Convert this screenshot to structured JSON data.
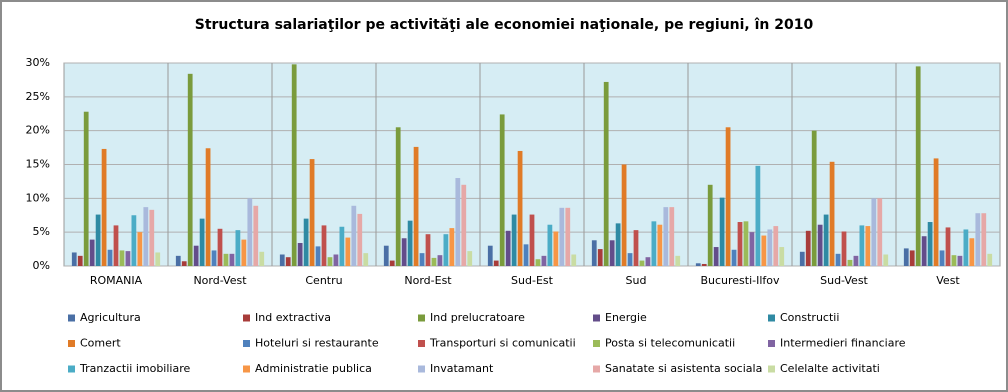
{
  "chart_data": {
    "type": "bar",
    "title": "Structura salariaţilor pe activităţi ale economiei naţionale, pe regiuni, în 2010",
    "categories": [
      "ROMANIA",
      "Nord-Vest",
      "Centru",
      "Nord-Est",
      "Sud-Est",
      "Sud",
      "Bucuresti-Ilfov",
      "Sud-Vest",
      "Vest"
    ],
    "ylim": [
      0,
      30
    ],
    "yticks": [
      {
        "value": 0,
        "label": "0%"
      },
      {
        "value": 5,
        "label": "5%"
      },
      {
        "value": 10,
        "label": "10%"
      },
      {
        "value": 15,
        "label": "15%"
      },
      {
        "value": 20,
        "label": "20%"
      },
      {
        "value": 25,
        "label": "25%"
      },
      {
        "value": 30,
        "label": "30%"
      }
    ],
    "grid": true,
    "series": [
      {
        "name": "Agricultura",
        "color": "#4a6fa5",
        "values": [
          2,
          1.5,
          1.7,
          3,
          3,
          3.8,
          0.4,
          2.1,
          2.6
        ]
      },
      {
        "name": "Ind extractiva",
        "color": "#a83c3a",
        "values": [
          1.5,
          0.7,
          1.3,
          0.8,
          0.8,
          2.5,
          0.3,
          5.2,
          2.3
        ]
      },
      {
        "name": "Ind prelucratoare",
        "color": "#7a9b3c",
        "values": [
          22.8,
          28.4,
          29.8,
          20.5,
          22.4,
          27.2,
          12,
          20,
          29.5
        ]
      },
      {
        "name": "Energie",
        "color": "#634d8a",
        "values": [
          3.9,
          3,
          3.4,
          4.1,
          5.2,
          3.8,
          2.8,
          6.1,
          4.4
        ]
      },
      {
        "name": "Constructii",
        "color": "#2f8aa3",
        "values": [
          7.6,
          7,
          7,
          6.7,
          7.6,
          6.3,
          10.1,
          7.6,
          6.5
        ]
      },
      {
        "name": "Comert",
        "color": "#e07b27",
        "values": [
          17.3,
          17.4,
          15.8,
          17.6,
          17,
          15,
          20.5,
          15.4,
          15.9
        ]
      },
      {
        "name": "Hoteluri si restaurante",
        "color": "#4f81bd",
        "values": [
          2.4,
          2.3,
          2.9,
          1.9,
          3.2,
          1.9,
          2.4,
          1.8,
          2.3
        ]
      },
      {
        "name": "Transporturi si comunicatii",
        "color": "#c0504d",
        "values": [
          6,
          5.5,
          6,
          4.7,
          7.6,
          5.3,
          6.5,
          5.1,
          5.7
        ]
      },
      {
        "name": "Posta si telecomunicatii",
        "color": "#9bbb59",
        "values": [
          2.3,
          1.8,
          1.3,
          1.2,
          1,
          0.8,
          6.6,
          0.9,
          1.6
        ]
      },
      {
        "name": "Intermedieri financiare",
        "color": "#8064a2",
        "values": [
          2.2,
          1.8,
          1.7,
          1.6,
          1.5,
          1.3,
          5,
          1.5,
          1.5
        ]
      },
      {
        "name": "Tranzactii imobiliare",
        "color": "#4bacc6",
        "values": [
          7.5,
          5.3,
          5.8,
          4.7,
          6.1,
          6.6,
          14.8,
          6,
          5.4
        ]
      },
      {
        "name": "Administratie publica",
        "color": "#f79646",
        "values": [
          5,
          3.9,
          4.2,
          5.6,
          5.1,
          6.1,
          4.5,
          5.9,
          4.1
        ]
      },
      {
        "name": "Invatamant",
        "color": "#a9b9dc",
        "values": [
          8.7,
          10,
          8.9,
          13,
          8.6,
          8.7,
          5.4,
          10,
          7.8
        ]
      },
      {
        "name": "Sanatate si asistenta  sociala",
        "color": "#e6a8a7",
        "values": [
          8.3,
          8.9,
          7.7,
          12,
          8.6,
          8.7,
          5.9,
          10,
          7.8
        ]
      },
      {
        "name": "Celelalte activitati",
        "color": "#c9dca3",
        "values": [
          2,
          2.1,
          1.9,
          2.2,
          1.7,
          1.5,
          2.8,
          1.7,
          1.8
        ]
      }
    ]
  }
}
